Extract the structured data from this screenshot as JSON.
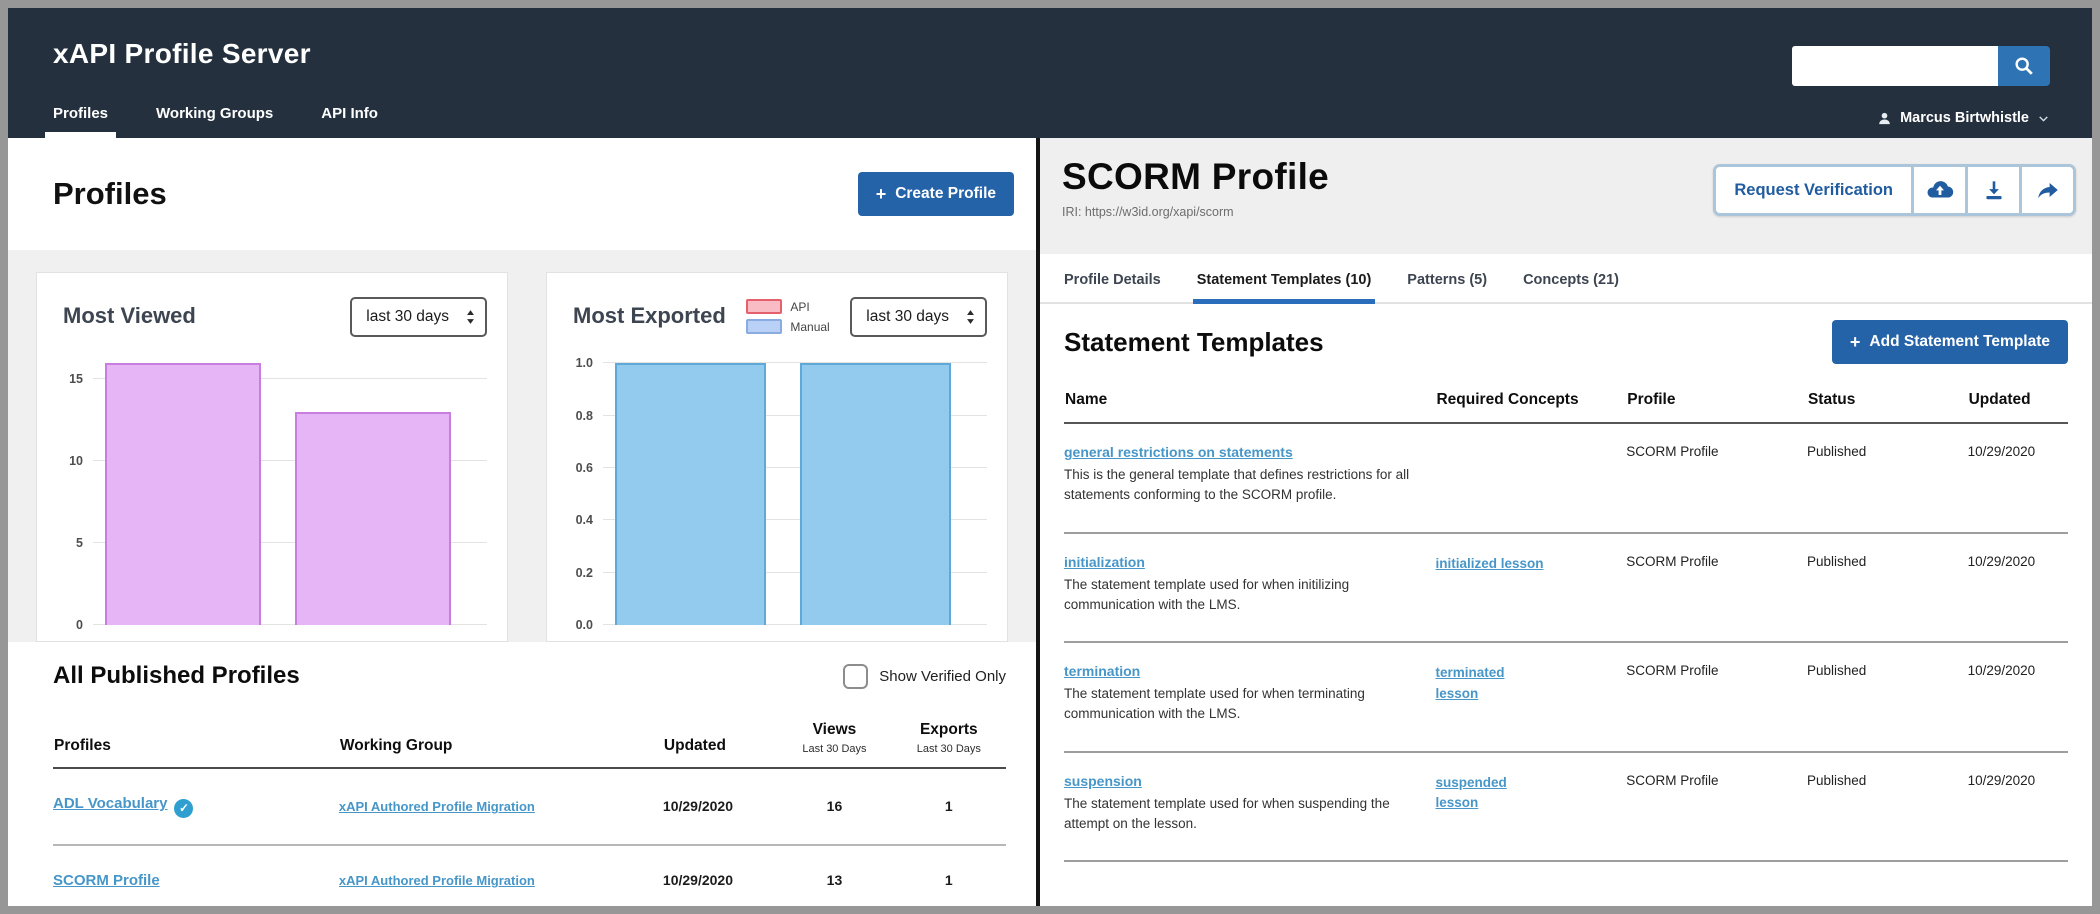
{
  "header": {
    "app_title": "xAPI Profile Server",
    "nav": [
      {
        "label": "Profiles",
        "active": true
      },
      {
        "label": "Working Groups",
        "active": false
      },
      {
        "label": "API Info",
        "active": false
      }
    ],
    "search": {
      "value": "",
      "placeholder": ""
    },
    "user": {
      "name": "Marcus Birtwhistle"
    }
  },
  "icons": {
    "plus": "+",
    "check": "✓"
  },
  "colors": {
    "header_bg": "#24303e",
    "primary_button": "#2563a8",
    "link": "#4796c8",
    "tab_active_underline": "#2a6ebb",
    "verified_badge": "#2f9fd0"
  },
  "left_panel": {
    "title": "Profiles",
    "create_button_label": "Create Profile",
    "published": {
      "title": "All Published Profiles",
      "verified_filter_label": "Show Verified Only",
      "columns": {
        "profiles": "Profiles",
        "working_group": "Working Group",
        "updated": "Updated",
        "views": "Views",
        "exports": "Exports",
        "period_note": "Last 30 Days"
      },
      "rows": [
        {
          "profile": "ADL Vocabulary",
          "verified": true,
          "working_group": "xAPI Authored Profile Migration",
          "updated": "10/29/2020",
          "views": "16",
          "exports": "1"
        },
        {
          "profile": "SCORM Profile",
          "verified": false,
          "working_group": "xAPI Authored Profile Migration",
          "updated": "10/29/2020",
          "views": "13",
          "exports": "1"
        }
      ]
    }
  },
  "right_panel": {
    "title": "SCORM Profile",
    "iri": "IRI: https://w3id.org/xapi/scorm",
    "actions": {
      "request_verification_label": "Request Verification"
    },
    "tabs": [
      {
        "label": "Profile Details",
        "active": false
      },
      {
        "label": "Statement Templates (10)",
        "active": true
      },
      {
        "label": "Patterns (5)",
        "active": false
      },
      {
        "label": "Concepts (21)",
        "active": false
      }
    ],
    "section_title": "Statement Templates",
    "add_button_label": "Add Statement Template",
    "table": {
      "columns": [
        "Name",
        "Required Concepts",
        "Profile",
        "Status",
        "Updated"
      ],
      "rows": [
        {
          "name": "general restrictions on statements",
          "description": "This is the general template that defines restrictions for all statements conforming to the SCORM profile.",
          "required_concept": "",
          "profile": "SCORM Profile",
          "status": "Published",
          "updated": "10/29/2020"
        },
        {
          "name": "initialization",
          "description": "The statement template used for when initilizing communication with the LMS.",
          "required_concept": "initialized lesson",
          "profile": "SCORM Profile",
          "status": "Published",
          "updated": "10/29/2020"
        },
        {
          "name": "termination",
          "description": "The statement template used for when terminating communication with the LMS.",
          "required_concept": "terminated lesson",
          "profile": "SCORM Profile",
          "status": "Published",
          "updated": "10/29/2020"
        },
        {
          "name": "suspension",
          "description": "The statement template used for when suspending the attempt on the lesson.",
          "required_concept": "suspended lesson",
          "profile": "SCORM Profile",
          "status": "Published",
          "updated": "10/29/2020"
        }
      ]
    }
  },
  "chart_data": [
    {
      "type": "bar",
      "title": "Most Viewed",
      "period_selector": "last 30 days",
      "values": [
        16,
        13
      ],
      "ylim": [
        0,
        16.6
      ],
      "yticks": [
        0,
        5,
        10,
        15
      ],
      "ytick_labels": [
        "0",
        "5",
        "10",
        "15"
      ],
      "bar_fill": "#e5b5f6",
      "bar_border": "#c77ee0",
      "grid": true,
      "legend_position": "none"
    },
    {
      "type": "bar",
      "title": "Most Exported",
      "period_selector": "last 30 days",
      "legend": [
        {
          "label": "API",
          "fill": "#f9bcc4",
          "border": "#e4606d"
        },
        {
          "label": "Manual",
          "fill": "#bad1f7",
          "border": "#8aabdf"
        }
      ],
      "values": [
        1.0,
        1.0
      ],
      "ylim": [
        0,
        1.04
      ],
      "yticks": [
        0,
        0.2,
        0.4,
        0.6,
        0.8,
        1.0
      ],
      "ytick_labels": [
        "0.0",
        "0.2",
        "0.4",
        "0.6",
        "0.8",
        "1.0"
      ],
      "bar_fill": "#93cbee",
      "bar_border": "#5fa8d8",
      "grid": true,
      "legend_position": "top"
    }
  ]
}
